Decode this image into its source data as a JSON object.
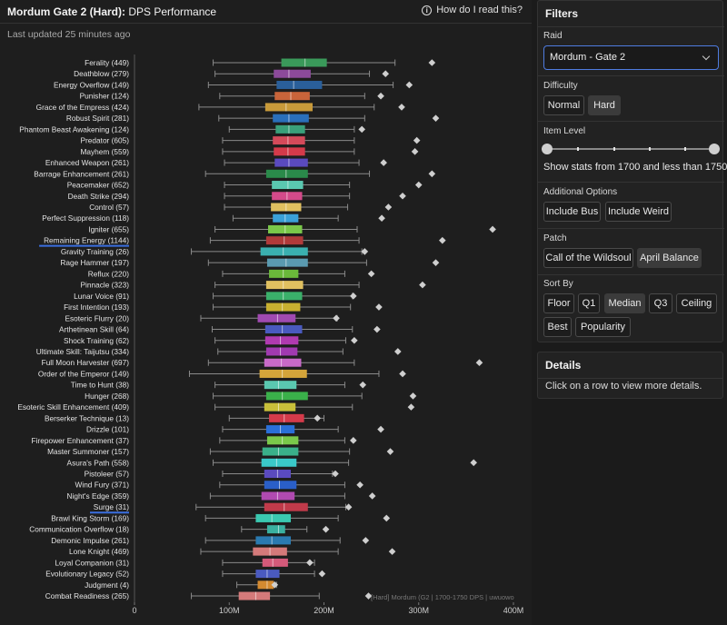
{
  "header": {
    "title_bold": "Mordum Gate 2 (Hard):",
    "title_rest": " DPS Performance",
    "help_label": "How do I read this?",
    "updated": "Last updated 25 minutes ago"
  },
  "filters": {
    "title": "Filters",
    "raid_label": "Raid",
    "raid_value": "Mordum - Gate 2",
    "difficulty_label": "Difficulty",
    "difficulty_options": [
      "Normal",
      "Hard"
    ],
    "difficulty_selected": "Hard",
    "item_level_label": "Item Level",
    "item_level_text": "Show stats from 1700 and less than 1750",
    "item_level_min": 1700,
    "item_level_max": 1750,
    "additional_label": "Additional Options",
    "additional_options": [
      "Include Bus",
      "Include Weird"
    ],
    "patch_label": "Patch",
    "patch_options": [
      "Call of the Wildsoul",
      "April Balance"
    ],
    "patch_selected": "April Balance",
    "sort_label": "Sort By",
    "sort_options": [
      "Floor",
      "Q1",
      "Median",
      "Q3",
      "Ceiling",
      "Best",
      "Popularity"
    ],
    "sort_selected": "Median"
  },
  "details": {
    "title": "Details",
    "text": "Click on a row to view more details."
  },
  "chart_data": {
    "type": "boxplot",
    "x_ticks": [
      0,
      100,
      200,
      300,
      400
    ],
    "x_tick_labels": [
      "0",
      "100M",
      "200M",
      "300M",
      "400M"
    ],
    "xlim": [
      0,
      400
    ],
    "unit": "M",
    "watermark": "[Hard] Mordum (G2 | 1700-1750 DPS | uwuowo",
    "underlined": [
      "Remaining Energy (1144)",
      "Surge (31)"
    ],
    "rows": [
      {
        "label": "Ferality (449)",
        "color": "#3a9a5a",
        "min": 83,
        "q1": 155,
        "median": 180,
        "q3": 203,
        "max": 275,
        "best": 314
      },
      {
        "label": "Deathblow (279)",
        "color": "#8c4a9a",
        "min": 85,
        "q1": 147,
        "median": 163,
        "q3": 186,
        "max": 248,
        "best": 265
      },
      {
        "label": "Energy Overflow (149)",
        "color": "#2a5f9a",
        "min": 78,
        "q1": 150,
        "median": 168,
        "q3": 198,
        "max": 273,
        "best": 290
      },
      {
        "label": "Punisher (124)",
        "color": "#c8643a",
        "min": 90,
        "q1": 148,
        "median": 165,
        "q3": 185,
        "max": 243,
        "best": 260
      },
      {
        "label": "Grace of the Empress (424)",
        "color": "#c89a3a",
        "min": 68,
        "q1": 138,
        "median": 160,
        "q3": 188,
        "max": 253,
        "best": 282
      },
      {
        "label": "Robust Spirit (281)",
        "color": "#2a6fba",
        "min": 89,
        "q1": 146,
        "median": 163,
        "q3": 184,
        "max": 243,
        "best": 318
      },
      {
        "label": "Phantom Beast Awakening (124)",
        "color": "#3aa07a",
        "min": 100,
        "q1": 149,
        "median": 163,
        "q3": 180,
        "max": 232,
        "best": 240
      },
      {
        "label": "Predator (605)",
        "color": "#d44a5a",
        "min": 93,
        "q1": 146,
        "median": 162,
        "q3": 180,
        "max": 232,
        "best": 298
      },
      {
        "label": "Mayhem (559)",
        "color": "#d43a4a",
        "min": 93,
        "q1": 147,
        "median": 162,
        "q3": 180,
        "max": 232,
        "best": 296
      },
      {
        "label": "Enhanced Weapon (261)",
        "color": "#5a4abf",
        "min": 95,
        "q1": 148,
        "median": 163,
        "q3": 183,
        "max": 237,
        "best": 263
      },
      {
        "label": "Barrage Enhancement (261)",
        "color": "#2a8a4a",
        "min": 75,
        "q1": 139,
        "median": 160,
        "q3": 183,
        "max": 248,
        "best": 314
      },
      {
        "label": "Peacemaker (652)",
        "color": "#5ac8b0",
        "min": 95,
        "q1": 145,
        "median": 162,
        "q3": 178,
        "max": 227,
        "best": 300
      },
      {
        "label": "Death Strike (294)",
        "color": "#d44a8a",
        "min": 95,
        "q1": 145,
        "median": 161,
        "q3": 177,
        "max": 227,
        "best": 283
      },
      {
        "label": "Control (57)",
        "color": "#e0c060",
        "min": 95,
        "q1": 144,
        "median": 160,
        "q3": 176,
        "max": 225,
        "best": 268
      },
      {
        "label": "Perfect Suppression (118)",
        "color": "#3aa0d8",
        "min": 104,
        "q1": 146,
        "median": 159,
        "q3": 173,
        "max": 215,
        "best": 261
      },
      {
        "label": "Igniter (655)",
        "color": "#7ac84a",
        "min": 85,
        "q1": 141,
        "median": 159,
        "q3": 177,
        "max": 235,
        "best": 378
      },
      {
        "label": "Remaining Energy (1144)",
        "color": "#b03a3a",
        "min": 80,
        "q1": 139,
        "median": 158,
        "q3": 178,
        "max": 237,
        "best": 325
      },
      {
        "label": "Gravity Training (26)",
        "color": "#3ab0b0",
        "min": 60,
        "q1": 133,
        "median": 157,
        "q3": 183,
        "max": 240,
        "best": 243
      },
      {
        "label": "Rage Hammer (197)",
        "color": "#5a9ab0",
        "min": 78,
        "q1": 140,
        "median": 160,
        "q3": 183,
        "max": 245,
        "best": 318
      },
      {
        "label": "Reflux (220)",
        "color": "#6ab83a",
        "min": 93,
        "q1": 142,
        "median": 157,
        "q3": 173,
        "max": 222,
        "best": 250
      },
      {
        "label": "Pinnacle (323)",
        "color": "#e0c060",
        "min": 85,
        "q1": 139,
        "median": 157,
        "q3": 178,
        "max": 237,
        "best": 304
      },
      {
        "label": "Lunar Voice (91)",
        "color": "#3ab06a",
        "min": 83,
        "q1": 139,
        "median": 157,
        "q3": 177,
        "max": 230,
        "best": 231
      },
      {
        "label": "First Intention (193)",
        "color": "#c8b030",
        "min": 83,
        "q1": 139,
        "median": 156,
        "q3": 175,
        "max": 228,
        "best": 258
      },
      {
        "label": "Esoteric Flurry (20)",
        "color": "#a04ab0",
        "min": 70,
        "q1": 130,
        "median": 151,
        "q3": 170,
        "max": 214,
        "best": 213
      },
      {
        "label": "Arthetinean Skill (64)",
        "color": "#4a5abf",
        "min": 82,
        "q1": 138,
        "median": 156,
        "q3": 177,
        "max": 230,
        "best": 256
      },
      {
        "label": "Shock Training (62)",
        "color": "#b03ab0",
        "min": 85,
        "q1": 138,
        "median": 154,
        "q3": 173,
        "max": 223,
        "best": 232
      },
      {
        "label": "Ultimate Skill: Taijutsu (334)",
        "color": "#a03ab0",
        "min": 88,
        "q1": 139,
        "median": 154,
        "q3": 172,
        "max": 220,
        "best": 278
      },
      {
        "label": "Full Moon Harvester (697)",
        "color": "#c86ac8",
        "min": 78,
        "q1": 137,
        "median": 155,
        "q3": 176,
        "max": 232,
        "best": 364
      },
      {
        "label": "Order of the Emperor (149)",
        "color": "#d4a43a",
        "min": 58,
        "q1": 132,
        "median": 156,
        "q3": 182,
        "max": 258,
        "best": 283
      },
      {
        "label": "Time to Hunt (38)",
        "color": "#5ac8b0",
        "min": 85,
        "q1": 137,
        "median": 152,
        "q3": 171,
        "max": 222,
        "best": 241
      },
      {
        "label": "Hunger (268)",
        "color": "#3ab04a",
        "min": 83,
        "q1": 139,
        "median": 156,
        "q3": 183,
        "max": 240,
        "best": 294
      },
      {
        "label": "Esoteric Skill Enhancement (409)",
        "color": "#c8c03a",
        "min": 85,
        "q1": 137,
        "median": 152,
        "q3": 170,
        "max": 230,
        "best": 292
      },
      {
        "label": "Berserker Technique (13)",
        "color": "#d43a4a",
        "min": 100,
        "q1": 142,
        "median": 158,
        "q3": 179,
        "max": 200,
        "best": 193
      },
      {
        "label": "Drizzle (101)",
        "color": "#2a6fd8",
        "min": 93,
        "q1": 139,
        "median": 154,
        "q3": 169,
        "max": 215,
        "best": 260
      },
      {
        "label": "Firepower Enhancement (37)",
        "color": "#7ac84a",
        "min": 90,
        "q1": 140,
        "median": 156,
        "q3": 173,
        "max": 222,
        "best": 231
      },
      {
        "label": "Master Summoner (157)",
        "color": "#3ab08a",
        "min": 80,
        "q1": 135,
        "median": 152,
        "q3": 173,
        "max": 227,
        "best": 270
      },
      {
        "label": "Asura's Path (558)",
        "color": "#3ac8c8",
        "min": 83,
        "q1": 134,
        "median": 150,
        "q3": 171,
        "max": 226,
        "best": 358
      },
      {
        "label": "Pistoleer (57)",
        "color": "#5a4abf",
        "min": 93,
        "q1": 137,
        "median": 151,
        "q3": 165,
        "max": 209,
        "best": 212
      },
      {
        "label": "Wind Fury (371)",
        "color": "#2a5fc8",
        "min": 90,
        "q1": 137,
        "median": 153,
        "q3": 171,
        "max": 222,
        "best": 238
      },
      {
        "label": "Night's Edge (359)",
        "color": "#b04ab0",
        "min": 80,
        "q1": 134,
        "median": 151,
        "q3": 169,
        "max": 222,
        "best": 251
      },
      {
        "label": "Surge (31)",
        "color": "#c03a4a",
        "min": 65,
        "q1": 137,
        "median": 158,
        "q3": 183,
        "max": 223,
        "best": 226
      },
      {
        "label": "Brawl King Storm (169)",
        "color": "#3ac8b0",
        "min": 75,
        "q1": 128,
        "median": 145,
        "q3": 165,
        "max": 215,
        "best": 266
      },
      {
        "label": "Communication Overflow (18)",
        "color": "#3ab0a0",
        "min": 113,
        "q1": 140,
        "median": 152,
        "q3": 159,
        "max": 182,
        "best": 202
      },
      {
        "label": "Demonic Impulse (261)",
        "color": "#2a7ab0",
        "min": 75,
        "q1": 128,
        "median": 145,
        "q3": 165,
        "max": 217,
        "best": 244
      },
      {
        "label": "Lone Knight (469)",
        "color": "#d47a7a",
        "min": 70,
        "q1": 125,
        "median": 143,
        "q3": 161,
        "max": 215,
        "best": 272
      },
      {
        "label": "Loyal Companion (31)",
        "color": "#d45a7a",
        "min": 93,
        "q1": 135,
        "median": 146,
        "q3": 162,
        "max": 190,
        "best": 185
      },
      {
        "label": "Evolutionary Legacy (52)",
        "color": "#4a5abf",
        "min": 93,
        "q1": 128,
        "median": 140,
        "q3": 153,
        "max": 190,
        "best": 198
      },
      {
        "label": "Judgment (4)",
        "color": "#d48a30",
        "min": 108,
        "q1": 130,
        "median": 140,
        "q3": 147,
        "max": 150,
        "best": 148
      },
      {
        "label": "Combat Readiness (265)",
        "color": "#d47a7a",
        "min": 60,
        "q1": 110,
        "median": 128,
        "q3": 143,
        "max": 195,
        "best": 247
      }
    ]
  }
}
